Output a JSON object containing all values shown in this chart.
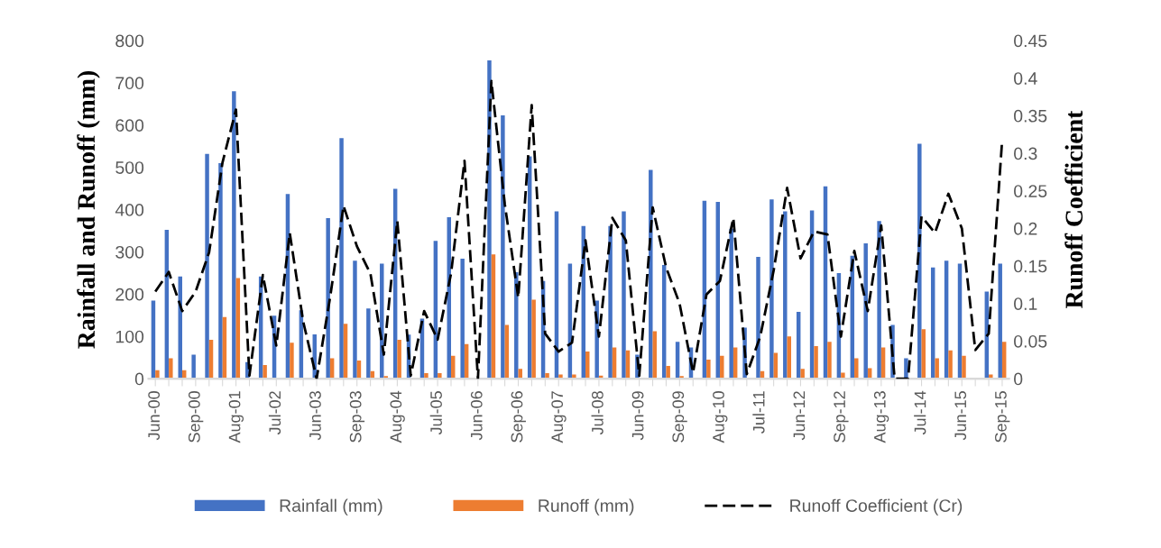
{
  "chart_data": {
    "type": "bar",
    "categories": [
      "Jun-00",
      null,
      null,
      "Sep-00",
      null,
      null,
      "Aug-01",
      null,
      null,
      "Jul-02",
      null,
      null,
      "Jun-03",
      null,
      null,
      "Sep-03",
      null,
      null,
      "Aug-04",
      null,
      null,
      "Jul-05",
      null,
      null,
      "Jun-06",
      null,
      null,
      "Sep-06",
      null,
      null,
      "Aug-07",
      null,
      null,
      "Jul-08",
      null,
      null,
      "Jun-09",
      null,
      null,
      "Sep-09",
      null,
      null,
      "Aug-10",
      null,
      null,
      "Jul-11",
      null,
      null,
      "Jun-12",
      null,
      null,
      "Sep-12",
      null,
      null,
      "Aug-13",
      null,
      null,
      "Jul-14",
      null,
      null,
      "Jun-15",
      null,
      null,
      "Sep-15"
    ],
    "series": [
      {
        "name": "Rainfall (mm)",
        "color": "#4472c4",
        "values": [
          185,
          352,
          242,
          57,
          532,
          510,
          680,
          39,
          242,
          149,
          437,
          162,
          105,
          380,
          569,
          279,
          166,
          272,
          449,
          104,
          142,
          326,
          382,
          284,
          0,
          753,
          623,
          252,
          526,
          231,
          396,
          272,
          361,
          185,
          361,
          396,
          57,
          494,
          269,
          87,
          74,
          421,
          418,
          355,
          121,
          288,
          424,
          396,
          158,
          398,
          455,
          250,
          291,
          320,
          373,
          127,
          48,
          556,
          263,
          279,
          272,
          0,
          206,
          272
        ]
      },
      {
        "name": "Runoff (mm)",
        "color": "#ed7d31",
        "values": [
          20,
          48,
          20,
          null,
          92,
          146,
          238,
          null,
          32,
          null,
          85,
          null,
          0,
          48,
          130,
          43,
          18,
          6,
          92,
          0,
          13,
          13,
          54,
          82,
          0,
          294,
          127,
          23,
          187,
          13,
          10,
          10,
          64,
          7,
          74,
          67,
          0,
          112,
          30,
          6,
          0,
          45,
          54,
          74,
          0,
          18,
          61,
          100,
          23,
          77,
          87,
          14,
          48,
          25,
          74,
          0,
          0,
          117,
          48,
          67,
          54,
          0,
          10,
          87
        ]
      },
      {
        "name": "Runoff Coefficient (Cr)",
        "type": "line",
        "axis": "y2",
        "color": "#000000",
        "line_style": "dashed",
        "values": [
          0.116,
          0.142,
          0.09,
          0.116,
          0.168,
          0.288,
          0.358,
          0.004,
          0.138,
          0.044,
          0.194,
          0.076,
          0,
          0.108,
          0.23,
          0.176,
          0.14,
          0.032,
          0.21,
          0.004,
          0.09,
          0.052,
          0.14,
          0.29,
          0,
          0.396,
          0.232,
          0.108,
          0.364,
          0.06,
          0.036,
          0.048,
          0.184,
          0.056,
          0.214,
          0.184,
          0.004,
          0.228,
          0.148,
          0.1,
          0.008,
          0.112,
          0.13,
          0.214,
          0.006,
          0.056,
          0.144,
          0.254,
          0.16,
          0.196,
          0.192,
          0.056,
          0.17,
          0.09,
          0.204,
          0,
          0,
          0.216,
          0.194,
          0.246,
          0.2,
          0.038,
          0.06,
          0.318
        ]
      }
    ],
    "ylabel": "Rainfall and Runoff (mm)",
    "y2label": "Runoff Coefficient",
    "ylim": [
      0,
      800
    ],
    "yticks": [
      0,
      100,
      200,
      300,
      400,
      500,
      600,
      700,
      800
    ],
    "y2lim": [
      0,
      0.45
    ],
    "y2ticks": [
      0,
      0.05,
      0.1,
      0.15,
      0.2,
      0.25,
      0.3,
      0.35,
      0.4,
      0.45
    ],
    "grid": false,
    "legend": "bottom"
  }
}
